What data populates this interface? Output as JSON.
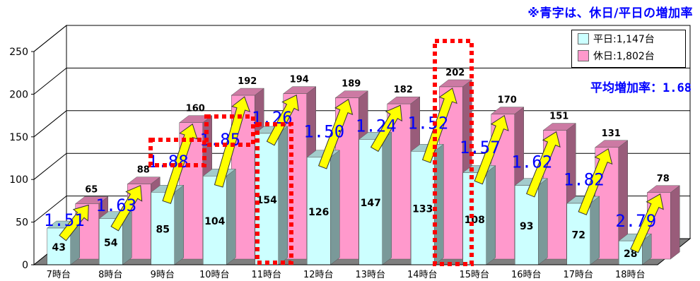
{
  "note": "※青字は、休日/平日の増加率",
  "avg_label": "平均増加率：1.68",
  "chart_data": {
    "type": "bar",
    "categories": [
      "7時台",
      "8時台",
      "9時台",
      "10時台",
      "11時台",
      "12時台",
      "13時台",
      "14時台",
      "15時台",
      "16時台",
      "17時台",
      "18時台"
    ],
    "series": [
      {
        "name": "平日:1,147台",
        "values": [
          43,
          54,
          85,
          104,
          154,
          126,
          147,
          133,
          108,
          93,
          72,
          28
        ],
        "color": "#ccffff"
      },
      {
        "name": "休日:1,802台",
        "values": [
          65,
          88,
          160,
          192,
          194,
          189,
          182,
          202,
          170,
          151,
          131,
          78
        ],
        "color": "#ff99cc"
      }
    ],
    "ratios": [
      "1.51",
      "1.63",
      "1.88",
      "1.85",
      "1.26",
      "1.50",
      "1.24",
      "1.52",
      "1.57",
      "1.62",
      "1.82",
      "2.79"
    ],
    "ylim": [
      0,
      250
    ],
    "yticks": [
      "0",
      "50",
      "100",
      "150",
      "200",
      "250"
    ],
    "highlighted": [
      "9時台",
      "10時台",
      "11時台",
      "14時台"
    ],
    "grid": true,
    "legend_position": "top-right"
  }
}
